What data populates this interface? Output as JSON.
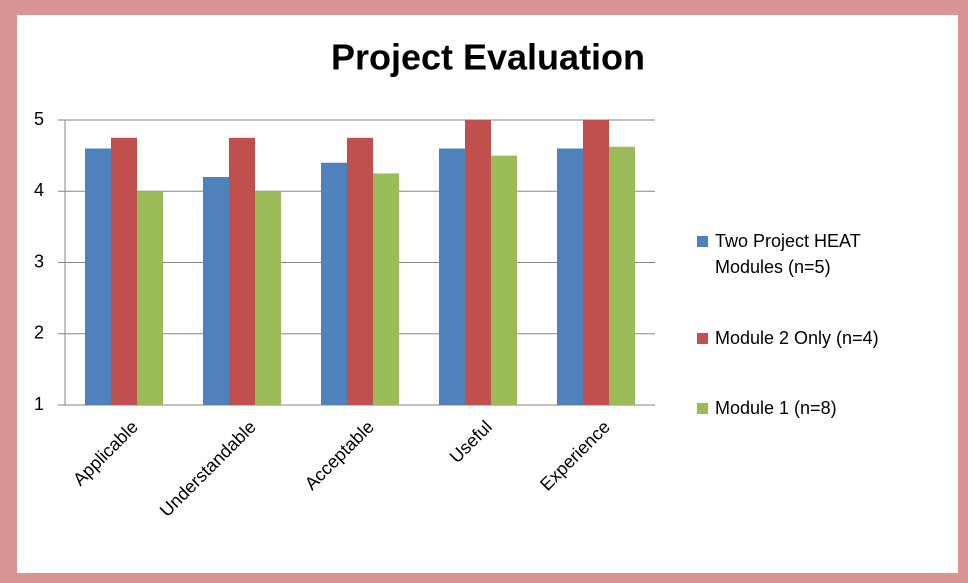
{
  "chart_data": {
    "type": "bar",
    "title": "Project Evaluation",
    "categories": [
      "Applicable",
      "Understandable",
      "Acceptable",
      "Useful",
      "Experience"
    ],
    "series": [
      {
        "name": "Two Project HEAT Modules (n=5)",
        "color": "#4f81bd",
        "values": [
          4.6,
          4.2,
          4.4,
          4.6,
          4.6
        ]
      },
      {
        "name": "Module 2 Only (n=4)",
        "color": "#c0504d",
        "values": [
          4.75,
          4.75,
          4.75,
          5,
          5
        ]
      },
      {
        "name": "Module 1 (n=8)",
        "color": "#9bbb59",
        "values": [
          4,
          4,
          4.25,
          4.5,
          4.625
        ]
      }
    ],
    "ylim": [
      1,
      5
    ],
    "yticks": [
      1,
      2,
      3,
      4,
      5
    ],
    "grid": true,
    "legend": "right"
  }
}
